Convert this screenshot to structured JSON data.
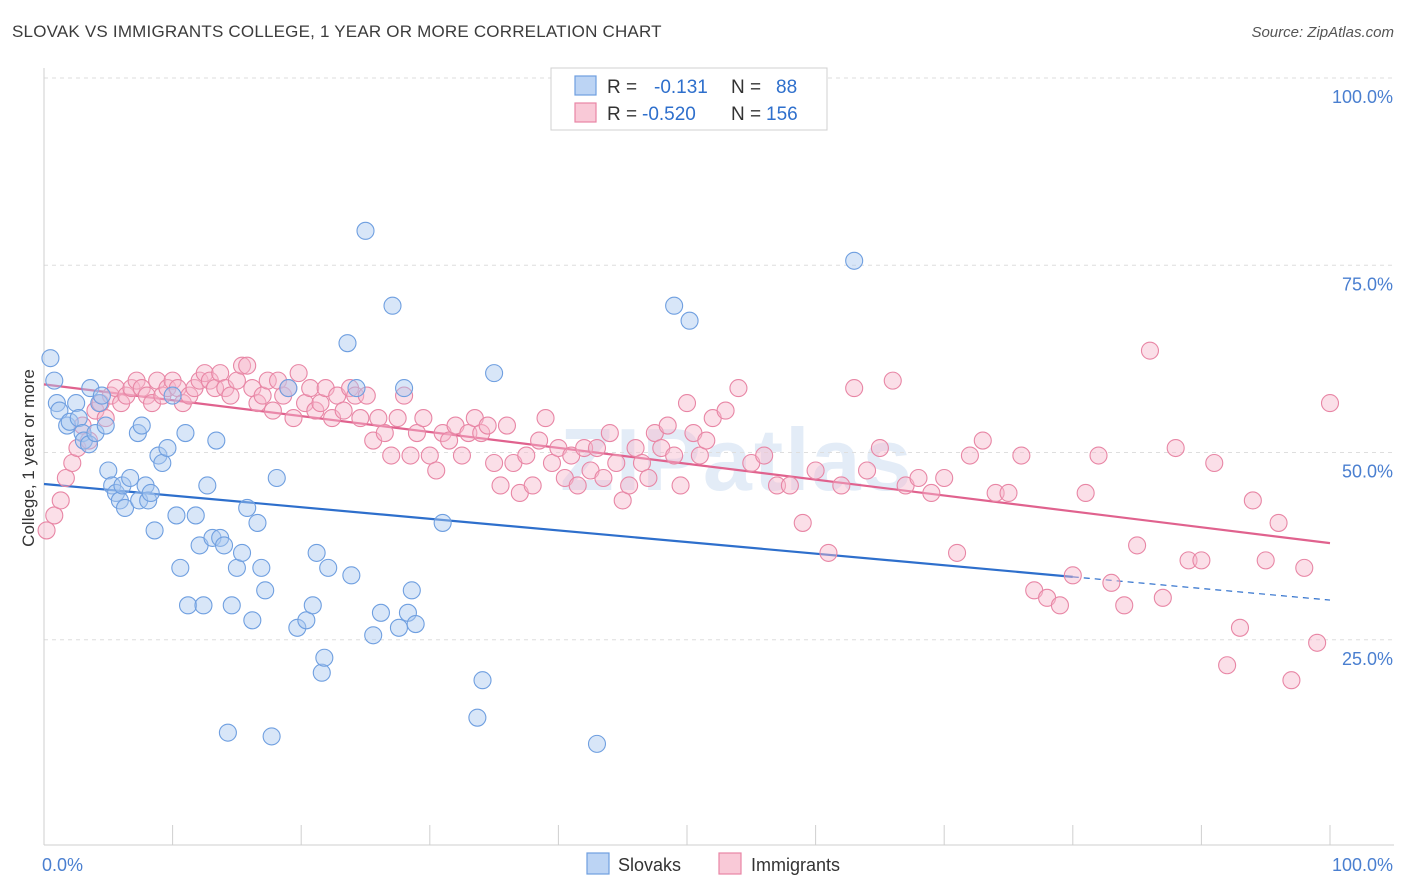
{
  "header": {
    "title": "SLOVAK VS IMMIGRANTS COLLEGE, 1 YEAR OR MORE CORRELATION CHART",
    "source": "Source: ZipAtlas.com"
  },
  "watermark": "ZIPatlas",
  "legend": {
    "rows": [
      {
        "r_label": "R =",
        "r_value": "-0.131",
        "n_label": "N =",
        "n_value": "88",
        "color": "#a9c8f0",
        "stroke": "#6f9fe0"
      },
      {
        "r_label": "R =",
        "r_value": "-0.520",
        "n_label": "N =",
        "n_value": "156",
        "color": "#f7b8cb",
        "stroke": "#e886a5"
      }
    ]
  },
  "bottom_legend": [
    "Slovaks",
    "Immigrants"
  ],
  "chart_data": {
    "type": "scatter",
    "ylabel": "College, 1 year or more",
    "xlim": [
      0,
      100
    ],
    "ylim": [
      0,
      100
    ],
    "x_tick_labels": [
      "0.0%",
      "100.0%"
    ],
    "y_tick_labels": [
      "100.0%",
      "75.0%",
      "50.0%",
      "25.0%"
    ],
    "y_ticks": [
      100,
      75,
      50,
      25
    ],
    "colors": {
      "Slovaks": "#6f9fe0",
      "Immigrants": "#e886a5",
      "slovak_line": "#2e6fcc",
      "immigrant_line": "#e0628e"
    },
    "series": [
      {
        "name": "Slovaks",
        "trend": {
          "x0": 0,
          "y0": 48.2,
          "x1": 80,
          "y1": 35.8,
          "dash_to": 100,
          "dash_y": 32.7
        },
        "points": [
          [
            0.5,
            65
          ],
          [
            0.8,
            62
          ],
          [
            1,
            59
          ],
          [
            1.2,
            58
          ],
          [
            1.8,
            56
          ],
          [
            2,
            56.5
          ],
          [
            2.5,
            59
          ],
          [
            2.7,
            57
          ],
          [
            3,
            55
          ],
          [
            3.1,
            54
          ],
          [
            3.5,
            53.5
          ],
          [
            3.6,
            61
          ],
          [
            4,
            55
          ],
          [
            4.3,
            59
          ],
          [
            4.5,
            60
          ],
          [
            4.8,
            56
          ],
          [
            5,
            50
          ],
          [
            5.3,
            48
          ],
          [
            5.6,
            47
          ],
          [
            5.9,
            46
          ],
          [
            6.1,
            48
          ],
          [
            6.3,
            45
          ],
          [
            6.7,
            49
          ],
          [
            7.3,
            55
          ],
          [
            7.4,
            46
          ],
          [
            7.6,
            56
          ],
          [
            7.9,
            48
          ],
          [
            8.1,
            46
          ],
          [
            8.3,
            47
          ],
          [
            8.6,
            42
          ],
          [
            8.9,
            52
          ],
          [
            9.2,
            51
          ],
          [
            9.6,
            53
          ],
          [
            10,
            60
          ],
          [
            10.3,
            44
          ],
          [
            10.6,
            37
          ],
          [
            11,
            55
          ],
          [
            11.2,
            32
          ],
          [
            11.8,
            44
          ],
          [
            12.1,
            40
          ],
          [
            12.4,
            32
          ],
          [
            12.7,
            48
          ],
          [
            13.1,
            41
          ],
          [
            13.4,
            54
          ],
          [
            13.7,
            41
          ],
          [
            14,
            40
          ],
          [
            14.3,
            15
          ],
          [
            14.6,
            32
          ],
          [
            15,
            37
          ],
          [
            15.4,
            39
          ],
          [
            15.8,
            45
          ],
          [
            16.2,
            30
          ],
          [
            16.6,
            43
          ],
          [
            16.9,
            37
          ],
          [
            17.2,
            34
          ],
          [
            17.7,
            14.5
          ],
          [
            18.1,
            49
          ],
          [
            19,
            61
          ],
          [
            19.7,
            29
          ],
          [
            20.4,
            30
          ],
          [
            20.9,
            32
          ],
          [
            21.2,
            39
          ],
          [
            21.6,
            23
          ],
          [
            21.8,
            25
          ],
          [
            22.1,
            37
          ],
          [
            23.6,
            67
          ],
          [
            23.9,
            36
          ],
          [
            24.3,
            61
          ],
          [
            25,
            82
          ],
          [
            25.6,
            28
          ],
          [
            26.2,
            31
          ],
          [
            27.1,
            72
          ],
          [
            27.6,
            29
          ],
          [
            28,
            61
          ],
          [
            28.3,
            31
          ],
          [
            28.6,
            34
          ],
          [
            28.9,
            29.5
          ],
          [
            31,
            43
          ],
          [
            33.7,
            17
          ],
          [
            34.1,
            22
          ],
          [
            35,
            63
          ],
          [
            43,
            13.5
          ],
          [
            49,
            72
          ],
          [
            50.2,
            70
          ],
          [
            63,
            78
          ]
        ]
      },
      {
        "name": "Immigrants",
        "trend": {
          "x0": 0,
          "y0": 61.5,
          "x1": 100,
          "y1": 40.3
        },
        "points": [
          [
            0.2,
            42
          ],
          [
            0.8,
            44
          ],
          [
            1.3,
            46
          ],
          [
            1.7,
            49
          ],
          [
            2.2,
            51
          ],
          [
            2.6,
            53
          ],
          [
            3,
            56
          ],
          [
            3.5,
            54
          ],
          [
            4,
            58
          ],
          [
            4.4,
            59
          ],
          [
            4.8,
            57
          ],
          [
            5.2,
            60
          ],
          [
            5.6,
            61
          ],
          [
            6,
            59
          ],
          [
            6.4,
            60
          ],
          [
            6.8,
            61
          ],
          [
            7.2,
            62
          ],
          [
            7.6,
            61
          ],
          [
            8,
            60
          ],
          [
            8.4,
            59
          ],
          [
            8.8,
            62
          ],
          [
            9.2,
            60
          ],
          [
            9.6,
            61
          ],
          [
            10,
            62
          ],
          [
            10.4,
            61
          ],
          [
            10.8,
            59
          ],
          [
            11.3,
            60
          ],
          [
            11.7,
            61
          ],
          [
            12.1,
            62
          ],
          [
            12.5,
            63
          ],
          [
            12.9,
            62
          ],
          [
            13.3,
            61
          ],
          [
            13.7,
            63
          ],
          [
            14.1,
            61
          ],
          [
            14.5,
            60
          ],
          [
            15,
            62
          ],
          [
            15.4,
            64
          ],
          [
            15.8,
            64
          ],
          [
            16.2,
            61
          ],
          [
            16.6,
            59
          ],
          [
            17,
            60
          ],
          [
            17.4,
            62
          ],
          [
            17.8,
            58
          ],
          [
            18.2,
            62
          ],
          [
            18.6,
            60
          ],
          [
            19,
            61
          ],
          [
            19.4,
            57
          ],
          [
            19.8,
            63
          ],
          [
            20.3,
            59
          ],
          [
            20.7,
            61
          ],
          [
            21.1,
            58
          ],
          [
            21.5,
            59
          ],
          [
            21.9,
            61
          ],
          [
            22.4,
            57
          ],
          [
            22.8,
            60
          ],
          [
            23.3,
            58
          ],
          [
            23.8,
            61
          ],
          [
            24.2,
            60
          ],
          [
            24.6,
            57
          ],
          [
            25.1,
            60
          ],
          [
            25.6,
            54
          ],
          [
            26,
            57
          ],
          [
            26.5,
            55
          ],
          [
            27,
            52
          ],
          [
            27.5,
            57
          ],
          [
            28,
            60
          ],
          [
            28.5,
            52
          ],
          [
            29,
            55
          ],
          [
            29.5,
            57
          ],
          [
            30,
            52
          ],
          [
            30.5,
            50
          ],
          [
            31,
            55
          ],
          [
            31.5,
            54
          ],
          [
            32,
            56
          ],
          [
            32.5,
            52
          ],
          [
            33,
            55
          ],
          [
            33.5,
            57
          ],
          [
            34,
            55
          ],
          [
            34.5,
            56
          ],
          [
            35,
            51
          ],
          [
            35.5,
            48
          ],
          [
            36,
            56
          ],
          [
            36.5,
            51
          ],
          [
            37,
            47
          ],
          [
            37.5,
            52
          ],
          [
            38,
            48
          ],
          [
            38.5,
            54
          ],
          [
            39,
            57
          ],
          [
            39.5,
            51
          ],
          [
            40,
            53
          ],
          [
            40.5,
            49
          ],
          [
            41,
            52
          ],
          [
            41.5,
            48
          ],
          [
            42,
            53
          ],
          [
            42.5,
            50
          ],
          [
            43,
            53
          ],
          [
            43.5,
            49
          ],
          [
            44,
            55
          ],
          [
            44.5,
            51
          ],
          [
            45,
            46
          ],
          [
            45.5,
            48
          ],
          [
            46,
            53
          ],
          [
            46.5,
            51
          ],
          [
            47,
            49
          ],
          [
            47.5,
            55
          ],
          [
            48,
            53
          ],
          [
            48.5,
            56
          ],
          [
            49,
            52
          ],
          [
            49.5,
            48
          ],
          [
            50,
            59
          ],
          [
            50.5,
            55
          ],
          [
            51,
            52
          ],
          [
            51.5,
            54
          ],
          [
            52,
            57
          ],
          [
            53,
            58
          ],
          [
            54,
            61
          ],
          [
            55,
            51
          ],
          [
            56,
            52
          ],
          [
            57,
            48
          ],
          [
            58,
            48
          ],
          [
            59,
            43
          ],
          [
            60,
            50
          ],
          [
            61,
            39
          ],
          [
            62,
            48
          ],
          [
            63,
            61
          ],
          [
            64,
            50
          ],
          [
            65,
            53
          ],
          [
            66,
            62
          ],
          [
            67,
            48
          ],
          [
            68,
            49
          ],
          [
            69,
            47
          ],
          [
            70,
            49
          ],
          [
            71,
            39
          ],
          [
            72,
            52
          ],
          [
            73,
            54
          ],
          [
            74,
            47
          ],
          [
            75,
            47
          ],
          [
            76,
            52
          ],
          [
            77,
            34
          ],
          [
            78,
            33
          ],
          [
            79,
            32
          ],
          [
            80,
            36
          ],
          [
            81,
            47
          ],
          [
            82,
            52
          ],
          [
            83,
            35
          ],
          [
            84,
            32
          ],
          [
            85,
            40
          ],
          [
            86,
            66
          ],
          [
            87,
            33
          ],
          [
            88,
            53
          ],
          [
            89,
            38
          ],
          [
            90,
            38
          ],
          [
            91,
            51
          ],
          [
            92,
            24
          ],
          [
            93,
            29
          ],
          [
            94,
            46
          ],
          [
            95,
            38
          ],
          [
            96,
            43
          ],
          [
            97,
            22
          ],
          [
            98,
            37
          ],
          [
            99,
            27
          ],
          [
            100,
            59
          ]
        ]
      }
    ]
  }
}
